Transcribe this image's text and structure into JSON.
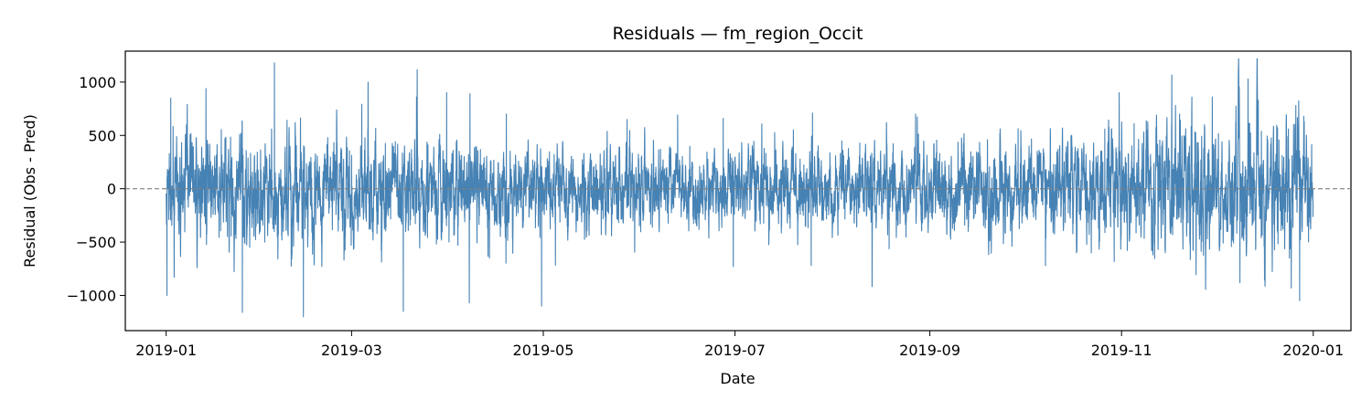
{
  "chart_data": {
    "type": "line",
    "title": "Residuals — fm_region_Occit",
    "xlabel": "Date",
    "ylabel": "Residual (Obs - Pred)",
    "x_range": [
      "2018-12-19",
      "2020-01-13"
    ],
    "x_ticks": [
      "2019-01",
      "2019-03",
      "2019-05",
      "2019-07",
      "2019-09",
      "2019-11",
      "2020-01"
    ],
    "ylim": [
      -1330,
      1290
    ],
    "y_ticks": [
      1000,
      500,
      0,
      -500,
      -1000
    ],
    "y_tick_labels": [
      "1000",
      "500",
      "0",
      "−500",
      "−1000"
    ],
    "grid": false,
    "reference_line": {
      "y": 0,
      "style": "dashed",
      "color": "#808080"
    },
    "series": [
      {
        "color": "#4682b4",
        "x_start": "2019-01-01",
        "x_end": "2019-12-31",
        "sampling": "hourly",
        "peaks": [
          {
            "x": "2019-01-01",
            "y": -1000
          },
          {
            "x": "2019-01-02",
            "y": 850
          },
          {
            "x": "2019-01-13",
            "y": 940
          },
          {
            "x": "2019-01-25",
            "y": -1160
          },
          {
            "x": "2019-02-04",
            "y": 1180
          },
          {
            "x": "2019-02-13",
            "y": -1200
          },
          {
            "x": "2019-03-06",
            "y": 1000
          },
          {
            "x": "2019-03-17",
            "y": -1150
          },
          {
            "x": "2019-03-21",
            "y": 860
          },
          {
            "x": "2019-03-31",
            "y": 900
          },
          {
            "x": "2019-04-07",
            "y": -1070
          },
          {
            "x": "2019-04-07",
            "y": 890
          },
          {
            "x": "2019-04-19",
            "y": 700
          },
          {
            "x": "2019-04-30",
            "y": -1100
          },
          {
            "x": "2019-05-27",
            "y": 650
          },
          {
            "x": "2019-06-27",
            "y": 660
          },
          {
            "x": "2019-06-30",
            "y": -730
          },
          {
            "x": "2019-07-25",
            "y": 710
          },
          {
            "x": "2019-07-25",
            "y": -720
          },
          {
            "x": "2019-08-27",
            "y": 700
          },
          {
            "x": "2019-10-26",
            "y": 560
          },
          {
            "x": "2019-10-31",
            "y": 900
          },
          {
            "x": "2019-11-19",
            "y": 700
          },
          {
            "x": "2019-12-08",
            "y": -880
          },
          {
            "x": "2019-12-11",
            "y": 1030
          },
          {
            "x": "2019-12-26",
            "y": 780
          },
          {
            "x": "2019-12-27",
            "y": -1050
          }
        ]
      }
    ]
  }
}
